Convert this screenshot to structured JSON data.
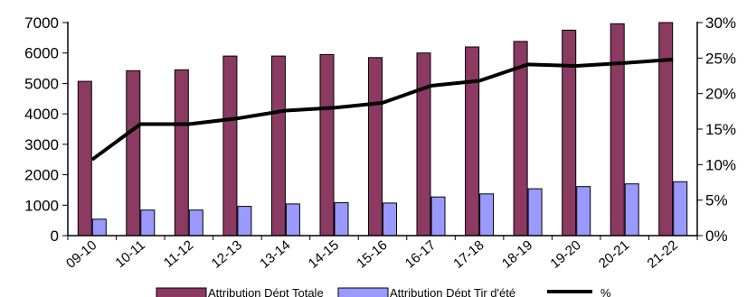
{
  "chart_data": {
    "type": "bar",
    "categories": [
      "09-10",
      "10-11",
      "11-12",
      "12-13",
      "13-14",
      "14-15",
      "15-16",
      "16-17",
      "17-18",
      "18-19",
      "19-20",
      "20-21",
      "21-22"
    ],
    "series": [
      {
        "name": "Attribution Dépt Totale",
        "type": "bar",
        "axis": "left",
        "color": "#8B3A62",
        "values": [
          5070,
          5420,
          5450,
          5900,
          5900,
          5950,
          5850,
          6000,
          6200,
          6380,
          6750,
          6960,
          7000
        ]
      },
      {
        "name": "Attribution Dépt Tir d'été",
        "type": "bar",
        "axis": "left",
        "color": "#9999FF",
        "values": [
          540,
          840,
          840,
          960,
          1040,
          1080,
          1070,
          1270,
          1370,
          1540,
          1610,
          1700,
          1770
        ]
      },
      {
        "name": "%",
        "type": "line",
        "axis": "right",
        "color": "#000000",
        "values": [
          0.107,
          0.157,
          0.157,
          0.165,
          0.176,
          0.18,
          0.187,
          0.211,
          0.218,
          0.241,
          0.239,
          0.243,
          0.248
        ]
      }
    ],
    "left_axis": {
      "ylim": [
        0,
        7000
      ],
      "ticks": [
        0,
        1000,
        2000,
        3000,
        4000,
        5000,
        6000,
        7000
      ],
      "tick_labels": [
        "0",
        "1000",
        "2000",
        "3000",
        "4000",
        "5000",
        "6000",
        "7000"
      ]
    },
    "right_axis": {
      "ylim": [
        0,
        0.3
      ],
      "ticks": [
        0,
        0.05,
        0.1,
        0.15,
        0.2,
        0.25,
        0.3
      ],
      "tick_labels": [
        "0%",
        "5%",
        "10%",
        "15%",
        "20%",
        "25%",
        "30%"
      ]
    },
    "grid": false,
    "legend": {
      "placement": "bottom",
      "entries": [
        "Attribution Dépt Totale",
        "Attribution Dépt Tir d'été",
        "%"
      ]
    }
  }
}
